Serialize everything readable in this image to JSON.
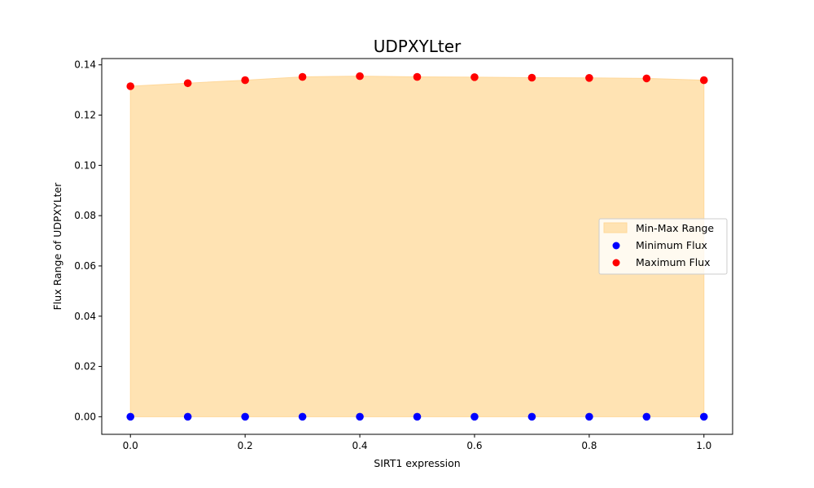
{
  "chart_data": {
    "type": "scatter",
    "title": "UDPXYLter",
    "xlabel": "SIRT1 expression",
    "ylabel": "Flux Range of UDPXYLter",
    "xlim": [
      -0.05,
      1.05
    ],
    "ylim": [
      -0.007,
      0.1425
    ],
    "xticks": [
      0.0,
      0.2,
      0.4,
      0.6,
      0.8,
      1.0
    ],
    "yticks": [
      0.0,
      0.02,
      0.04,
      0.06,
      0.08,
      0.1,
      0.12,
      0.14
    ],
    "xtick_labels": [
      "0.0",
      "0.2",
      "0.4",
      "0.6",
      "0.8",
      "1.0"
    ],
    "ytick_labels": [
      "0.00",
      "0.02",
      "0.04",
      "0.06",
      "0.08",
      "0.10",
      "0.12",
      "0.14"
    ],
    "x": [
      0.0,
      0.1,
      0.2,
      0.3,
      0.4,
      0.5,
      0.6,
      0.7,
      0.8,
      0.9,
      1.0
    ],
    "series": [
      {
        "name": "Min-Max Range",
        "kind": "fill",
        "color": "#ffe3b3",
        "edge": "#ffd89a",
        "lower": [
          0,
          0,
          0,
          0,
          0,
          0,
          0,
          0,
          0,
          0,
          0
        ],
        "upper": [
          0.1315,
          0.1327,
          0.1339,
          0.1352,
          0.1355,
          0.1352,
          0.1351,
          0.1349,
          0.1348,
          0.1346,
          0.1339
        ]
      },
      {
        "name": "Minimum Flux",
        "kind": "points",
        "color": "#0000ff",
        "values": [
          0,
          0,
          0,
          0,
          0,
          0,
          0,
          0,
          0,
          0,
          0
        ]
      },
      {
        "name": "Maximum Flux",
        "kind": "points",
        "color": "#ff0000",
        "values": [
          0.1315,
          0.1327,
          0.1339,
          0.1352,
          0.1355,
          0.1352,
          0.1351,
          0.1349,
          0.1348,
          0.1346,
          0.1339
        ]
      }
    ],
    "legend": {
      "position": "center-right",
      "entries": [
        "Min-Max Range",
        "Minimum Flux",
        "Maximum Flux"
      ]
    },
    "grid": false
  }
}
